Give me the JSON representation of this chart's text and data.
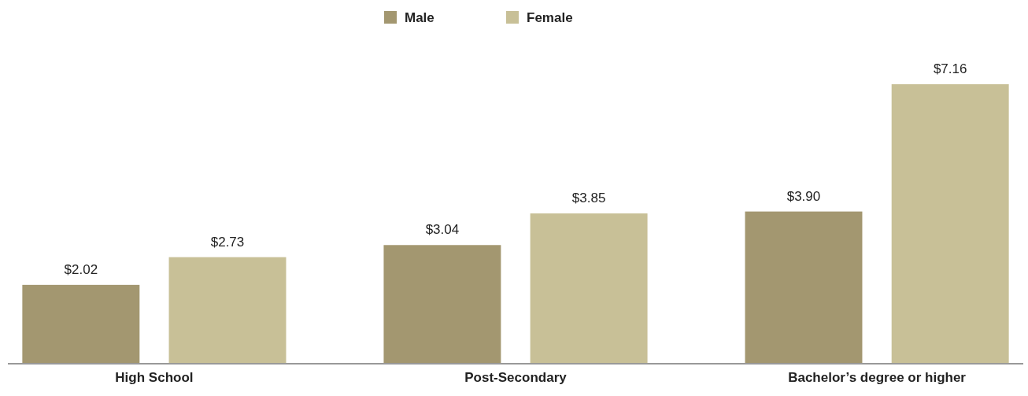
{
  "chart_data": {
    "type": "bar",
    "categories": [
      "High School",
      "Post-Secondary",
      "Bachelor’s degree or higher"
    ],
    "series": [
      {
        "name": "Male",
        "color": "#a39770",
        "values": [
          2.02,
          3.04,
          3.9
        ],
        "value_labels": [
          "$2.02",
          "$3.04",
          "$3.90"
        ]
      },
      {
        "name": "Female",
        "color": "#c8c097",
        "values": [
          2.73,
          3.85,
          7.16
        ],
        "value_labels": [
          "$2.73",
          "$3.85",
          "$7.16"
        ]
      }
    ],
    "legend": "top",
    "grid": false,
    "tick_labels": "x"
  }
}
